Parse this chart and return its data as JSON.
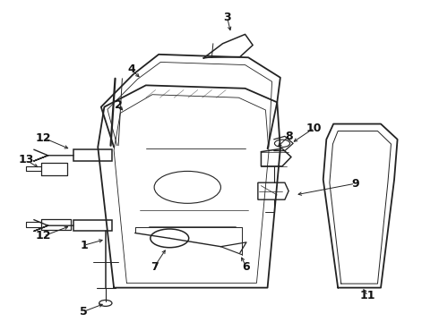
{
  "background_color": "#ffffff",
  "line_color": "#222222",
  "label_color": "#111111",
  "figsize": [
    4.9,
    3.6
  ],
  "dpi": 100
}
